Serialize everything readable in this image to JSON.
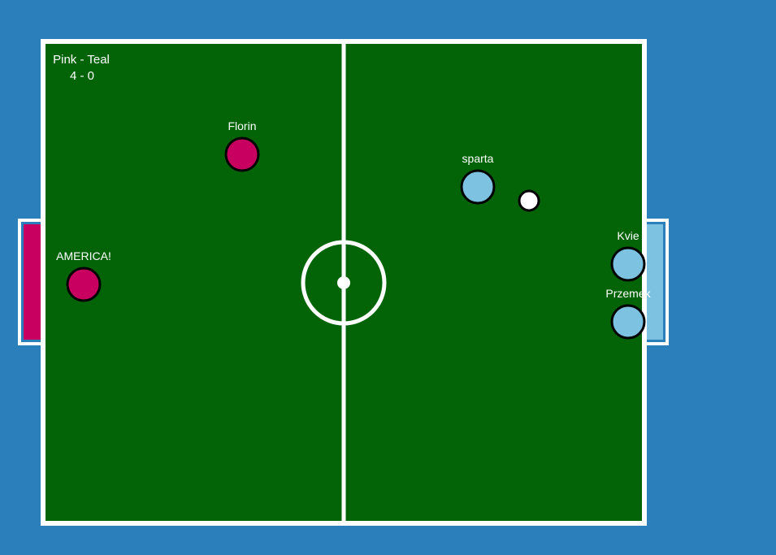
{
  "colors": {
    "background": "#2b80bb",
    "pitch": "#026407",
    "lines": "#ffffff",
    "pink_team": "#c8005f",
    "teal_team": "#7ec2e2",
    "ball": "#ffffff",
    "outline": "#000000"
  },
  "scoreboard": {
    "teams": "Pink - Teal",
    "score": "4 - 0"
  },
  "players": [
    {
      "name": "Florin",
      "team": "pink"
    },
    {
      "name": "AMERICA!",
      "team": "pink"
    },
    {
      "name": "sparta",
      "team": "teal"
    },
    {
      "name": "Kvie",
      "team": "teal"
    },
    {
      "name": "Przemek",
      "team": "teal"
    }
  ],
  "goals": [
    {
      "side": "left",
      "team": "pink"
    },
    {
      "side": "right",
      "team": "teal"
    }
  ]
}
